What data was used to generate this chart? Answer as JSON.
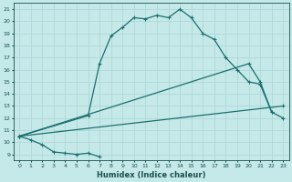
{
  "xlabel": "Humidex (Indice chaleur)",
  "xlim": [
    -0.5,
    23.5
  ],
  "ylim": [
    8.5,
    21.5
  ],
  "xticks": [
    0,
    1,
    2,
    3,
    4,
    5,
    6,
    7,
    8,
    9,
    10,
    11,
    12,
    13,
    14,
    15,
    16,
    17,
    18,
    19,
    20,
    21,
    22,
    23
  ],
  "yticks": [
    9,
    10,
    11,
    12,
    13,
    14,
    15,
    16,
    17,
    18,
    19,
    20,
    21
  ],
  "bg_color": "#c5e8e8",
  "grid_color": "#b0d8d8",
  "line_color": "#1a7070",
  "series": [
    {
      "x": [
        0,
        6,
        7,
        8,
        9,
        10,
        11,
        12,
        13,
        14,
        15,
        16,
        17,
        18,
        19,
        20,
        21,
        22,
        23
      ],
      "y": [
        10.5,
        12.2,
        16.5,
        18.8,
        19.5,
        20.3,
        20.2,
        20.5,
        20.3,
        21.0,
        20.3,
        19.0,
        18.5,
        17.0,
        16.0,
        15.0,
        14.8,
        12.5,
        12.0
      ]
    },
    {
      "x": [
        0,
        20,
        21,
        22
      ],
      "y": [
        10.5,
        16.5,
        15.0,
        12.5
      ]
    },
    {
      "x": [
        0,
        23
      ],
      "y": [
        10.5,
        13.0
      ]
    },
    {
      "x": [
        0,
        1,
        2,
        3,
        4,
        5,
        6,
        7
      ],
      "y": [
        10.5,
        10.2,
        9.8,
        9.2,
        9.1,
        9.0,
        9.1,
        8.8
      ]
    }
  ]
}
